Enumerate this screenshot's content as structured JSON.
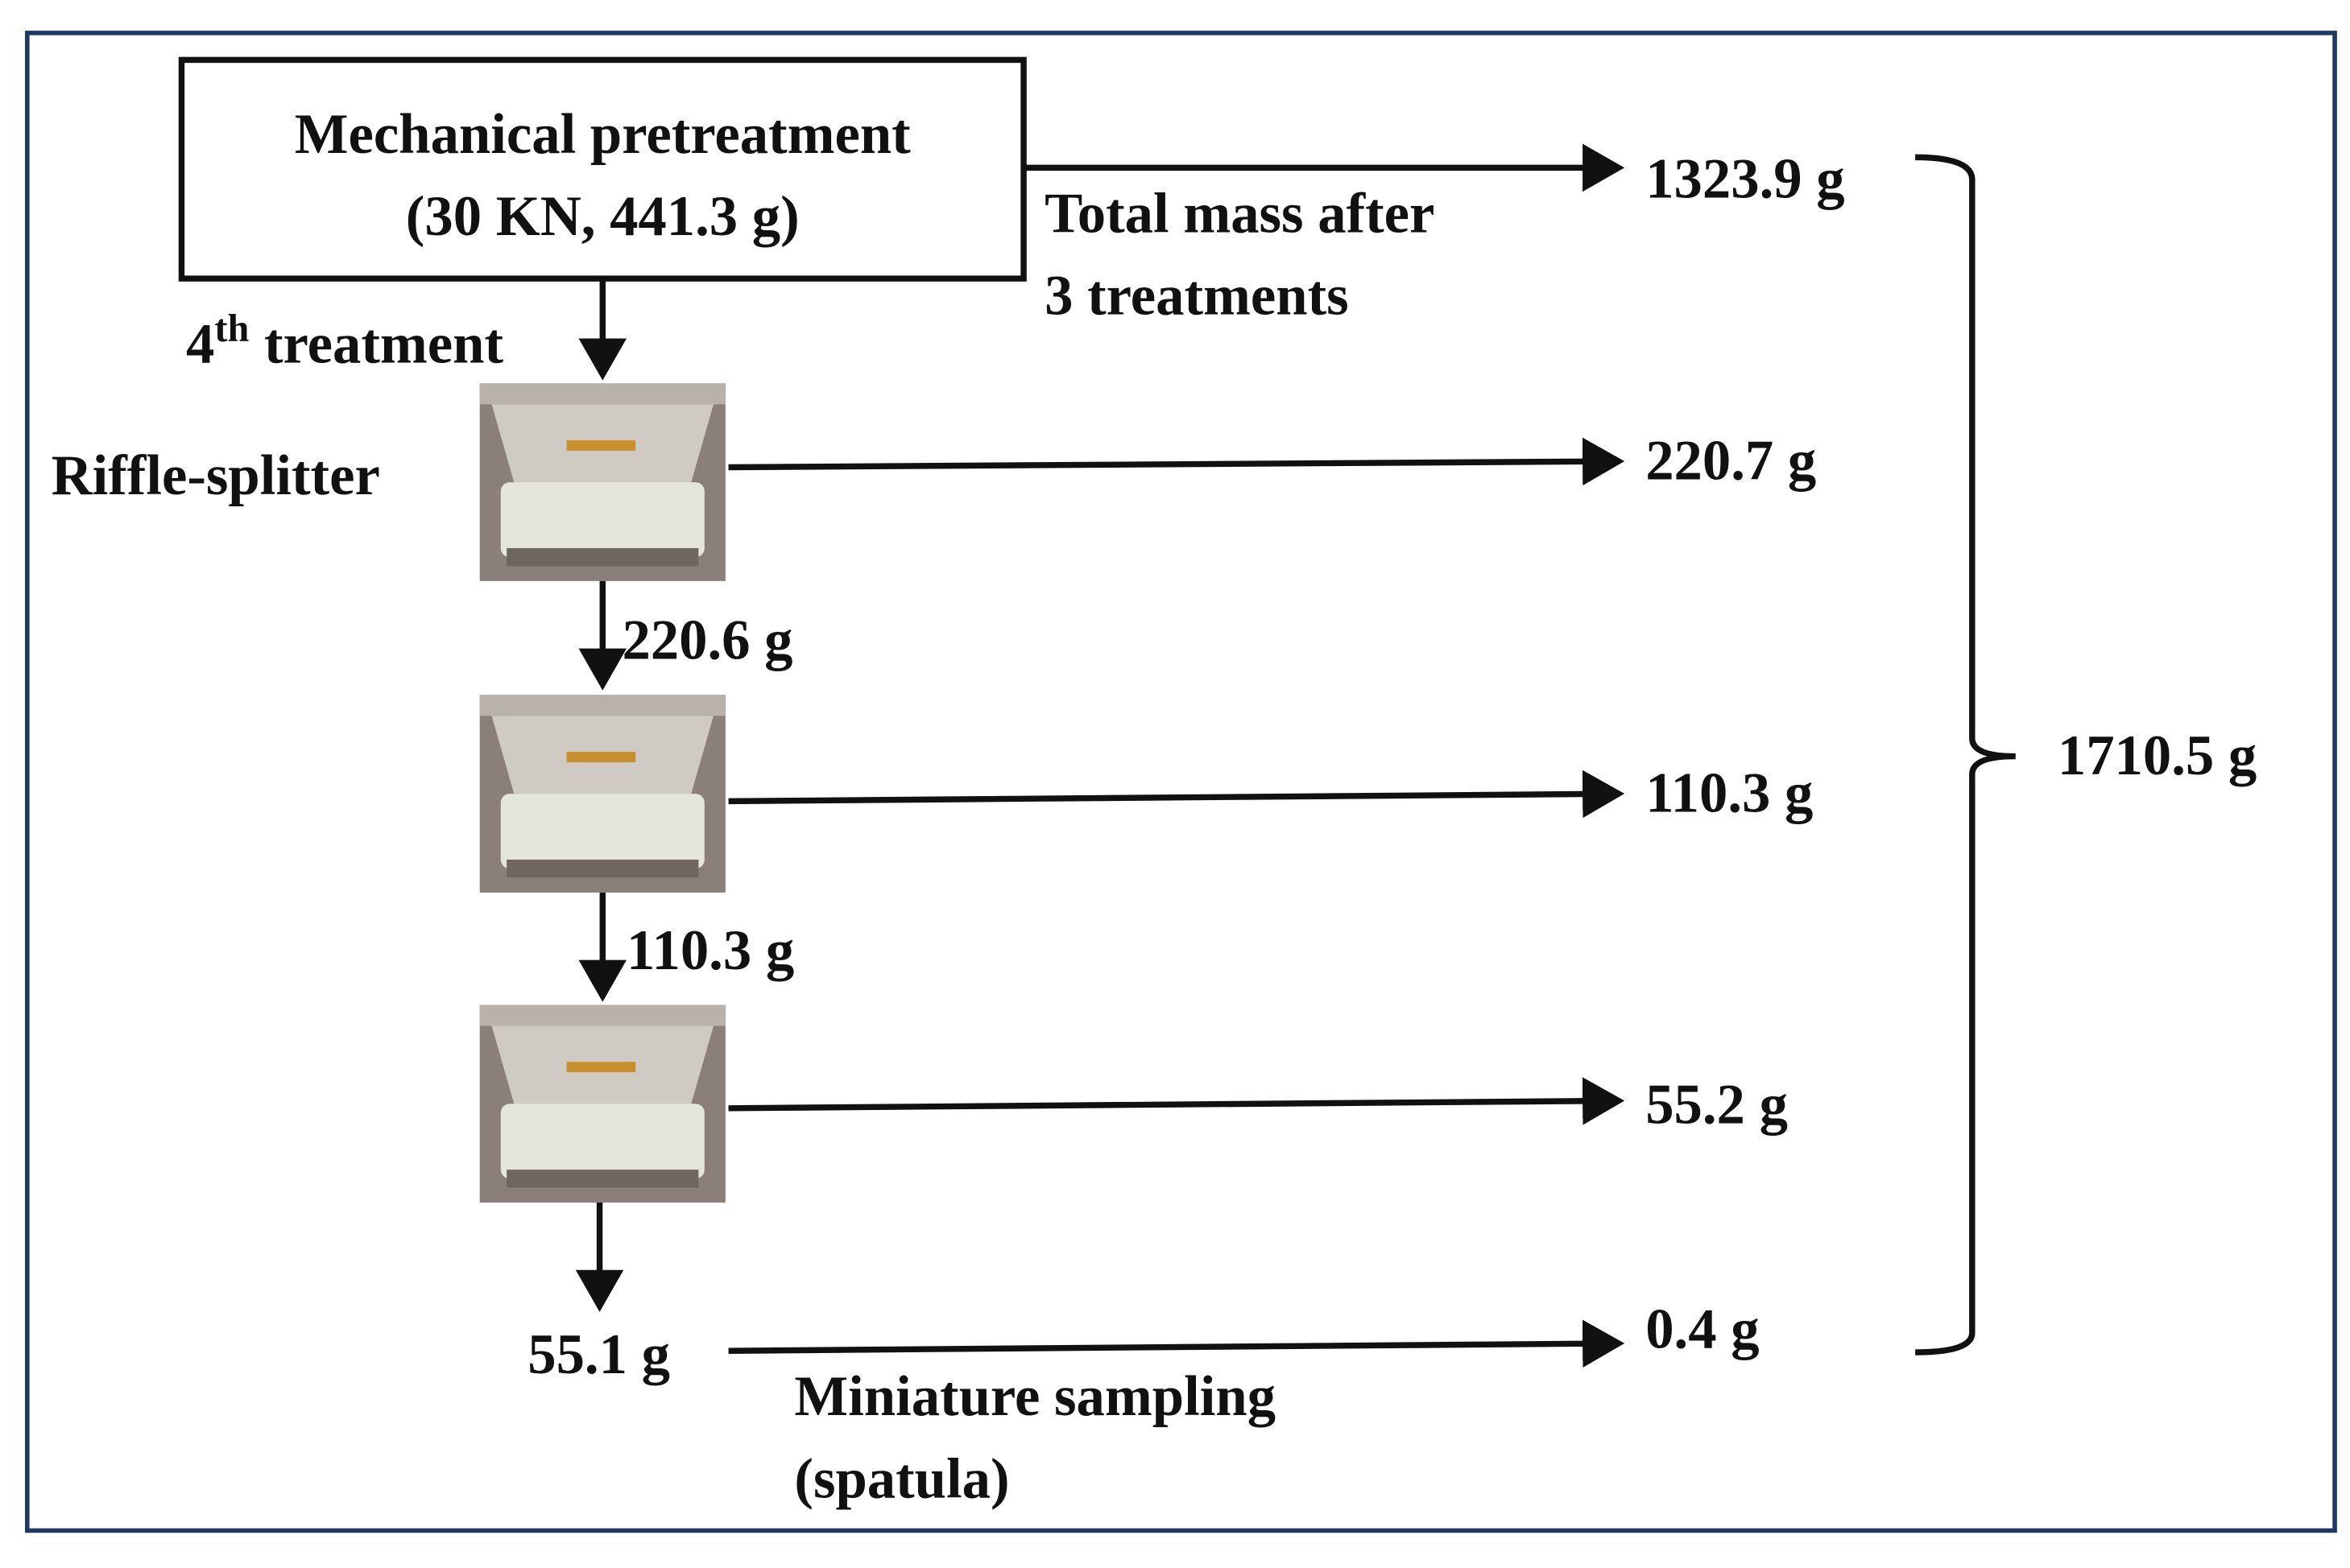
{
  "box": {
    "line1": "Mechanical pretreatment",
    "line2": "(30 KN, 441.3 g)"
  },
  "step_label": {
    "number": "4",
    "suffix": "th",
    "text": "treatment"
  },
  "splitter_label": "Riffle-splitter",
  "total_note": [
    "Total mass after",
    "3 treatments"
  ],
  "outputs": [
    "1323.9 g",
    "220.7 g",
    "110.3 g",
    "55.2 g",
    "0.4 g"
  ],
  "pass_through": [
    "220.6 g",
    "110.3 g",
    "55.1 g"
  ],
  "sampling_note": [
    "Miniature sampling",
    "(spatula)"
  ],
  "sum": "1710.5 g"
}
